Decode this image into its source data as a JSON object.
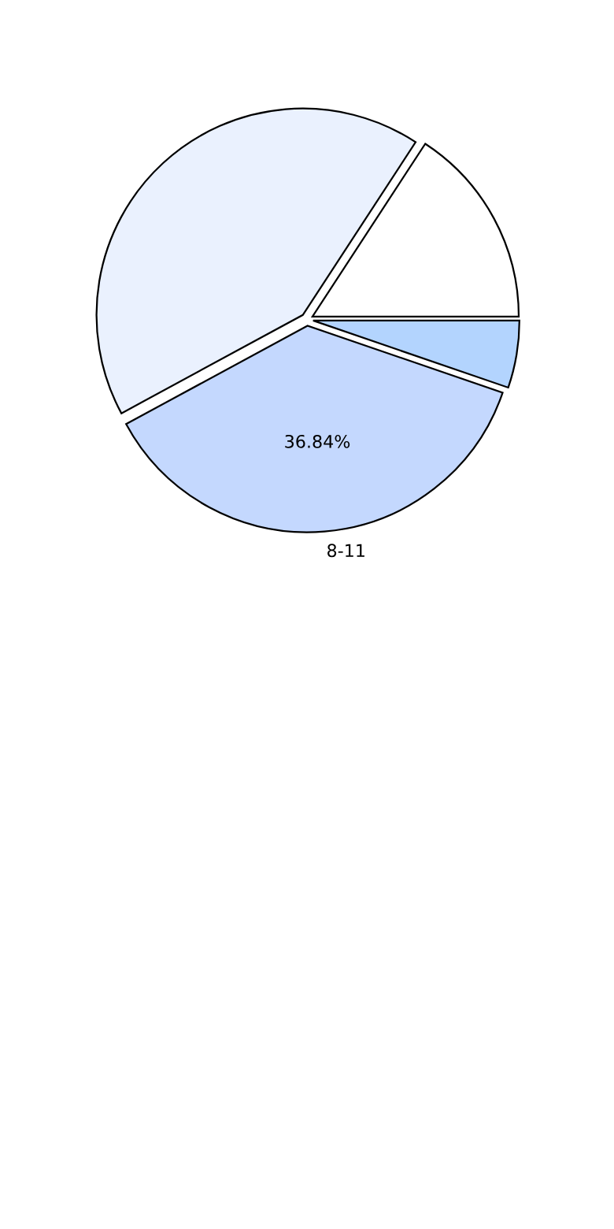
{
  "chart_data": {
    "type": "pie",
    "categories": [
      null,
      null,
      "8-11",
      null
    ],
    "values": [
      15.79,
      42.11,
      36.84,
      5.26
    ],
    "colors": [
      "#ffffff",
      "#eaf1fe",
      "#c4d8fe",
      "#b3d4fe"
    ],
    "value_labels": [
      null,
      null,
      "36.84%",
      null
    ]
  }
}
